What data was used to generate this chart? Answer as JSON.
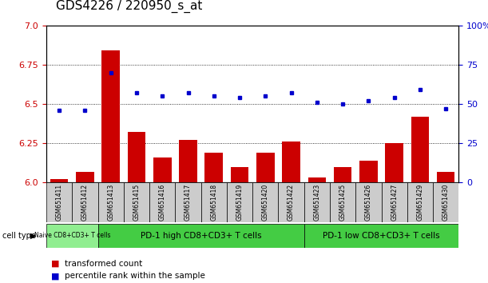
{
  "title": "GDS4226 / 220950_s_at",
  "samples": [
    "GSM651411",
    "GSM651412",
    "GSM651413",
    "GSM651415",
    "GSM651416",
    "GSM651417",
    "GSM651418",
    "GSM651419",
    "GSM651420",
    "GSM651422",
    "GSM651423",
    "GSM651425",
    "GSM651426",
    "GSM651427",
    "GSM651429",
    "GSM651430"
  ],
  "transformed_count": [
    6.02,
    6.07,
    6.84,
    6.32,
    6.16,
    6.27,
    6.19,
    6.1,
    6.19,
    6.26,
    6.03,
    6.1,
    6.14,
    6.25,
    6.42,
    6.07
  ],
  "percentile_rank": [
    46,
    46,
    70,
    57,
    55,
    57,
    55,
    54,
    55,
    57,
    51,
    50,
    52,
    54,
    59,
    47
  ],
  "ylim_left": [
    6.0,
    7.0
  ],
  "ylim_right": [
    0,
    100
  ],
  "yticks_left": [
    6.0,
    6.25,
    6.5,
    6.75,
    7.0
  ],
  "yticks_right": [
    0,
    25,
    50,
    75,
    100
  ],
  "grid_lines": [
    6.25,
    6.5,
    6.75
  ],
  "bar_color": "#cc0000",
  "dot_color": "#0000cc",
  "bar_width": 0.7,
  "groups": [
    {
      "label": "Naive CD8+CD3+ T cells",
      "start": 0,
      "end": 2
    },
    {
      "label": "PD-1 high CD8+CD3+ T cells",
      "start": 2,
      "end": 10
    },
    {
      "label": "PD-1 low CD8+CD3+ T cells",
      "start": 10,
      "end": 16
    }
  ],
  "group_colors": [
    "#90ee90",
    "#44cc44",
    "#44cc44"
  ],
  "legend_bar_label": "transformed count",
  "legend_dot_label": "percentile rank within the sample",
  "cell_type_label": "cell type",
  "sample_box_color": "#cccccc",
  "plot_bg": "#ffffff",
  "title_fontsize": 11,
  "right_axis_color": "#0000cc",
  "left_axis_color": "#cc0000"
}
